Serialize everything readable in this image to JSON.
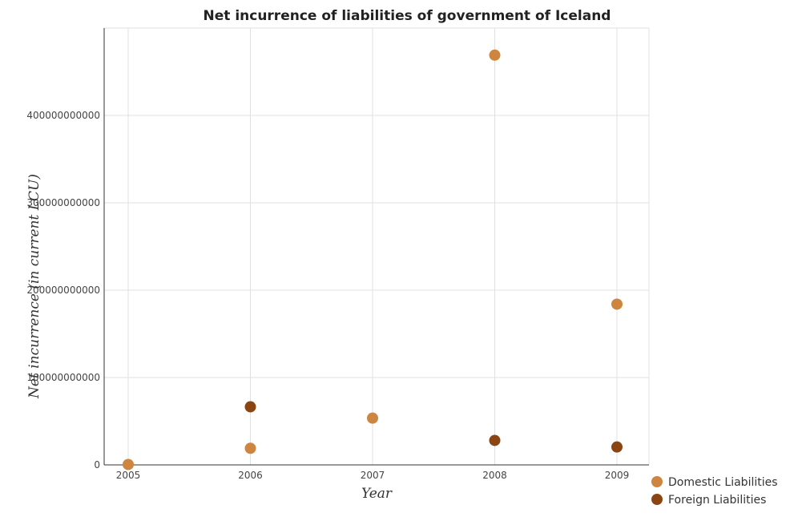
{
  "chart_data": {
    "type": "scatter",
    "title": "Net incurrence of liabilities of government of Iceland",
    "xlabel": "Year",
    "ylabel": "Net incurrence (in current LCU)",
    "categories": [
      "2005",
      "2006",
      "2007",
      "2008",
      "2009"
    ],
    "ylim": [
      0,
      500000000000
    ],
    "yticks": [
      0,
      100000000000,
      200000000000,
      300000000000,
      400000000000
    ],
    "ytick_labels": [
      "0",
      "100000000000",
      "200000000000",
      "300000000000",
      "400000000000"
    ],
    "grid": true,
    "legend_position": "bottom-right",
    "series": [
      {
        "name": "Domestic Liabilities",
        "color": "#cd853f",
        "values": [
          500000000,
          19000000000,
          53500000000,
          469000000000,
          184000000000
        ]
      },
      {
        "name": "Foreign Liabilities",
        "color": "#8b4513",
        "values": [
          null,
          66500000000,
          null,
          28000000000,
          20500000000
        ]
      }
    ]
  }
}
